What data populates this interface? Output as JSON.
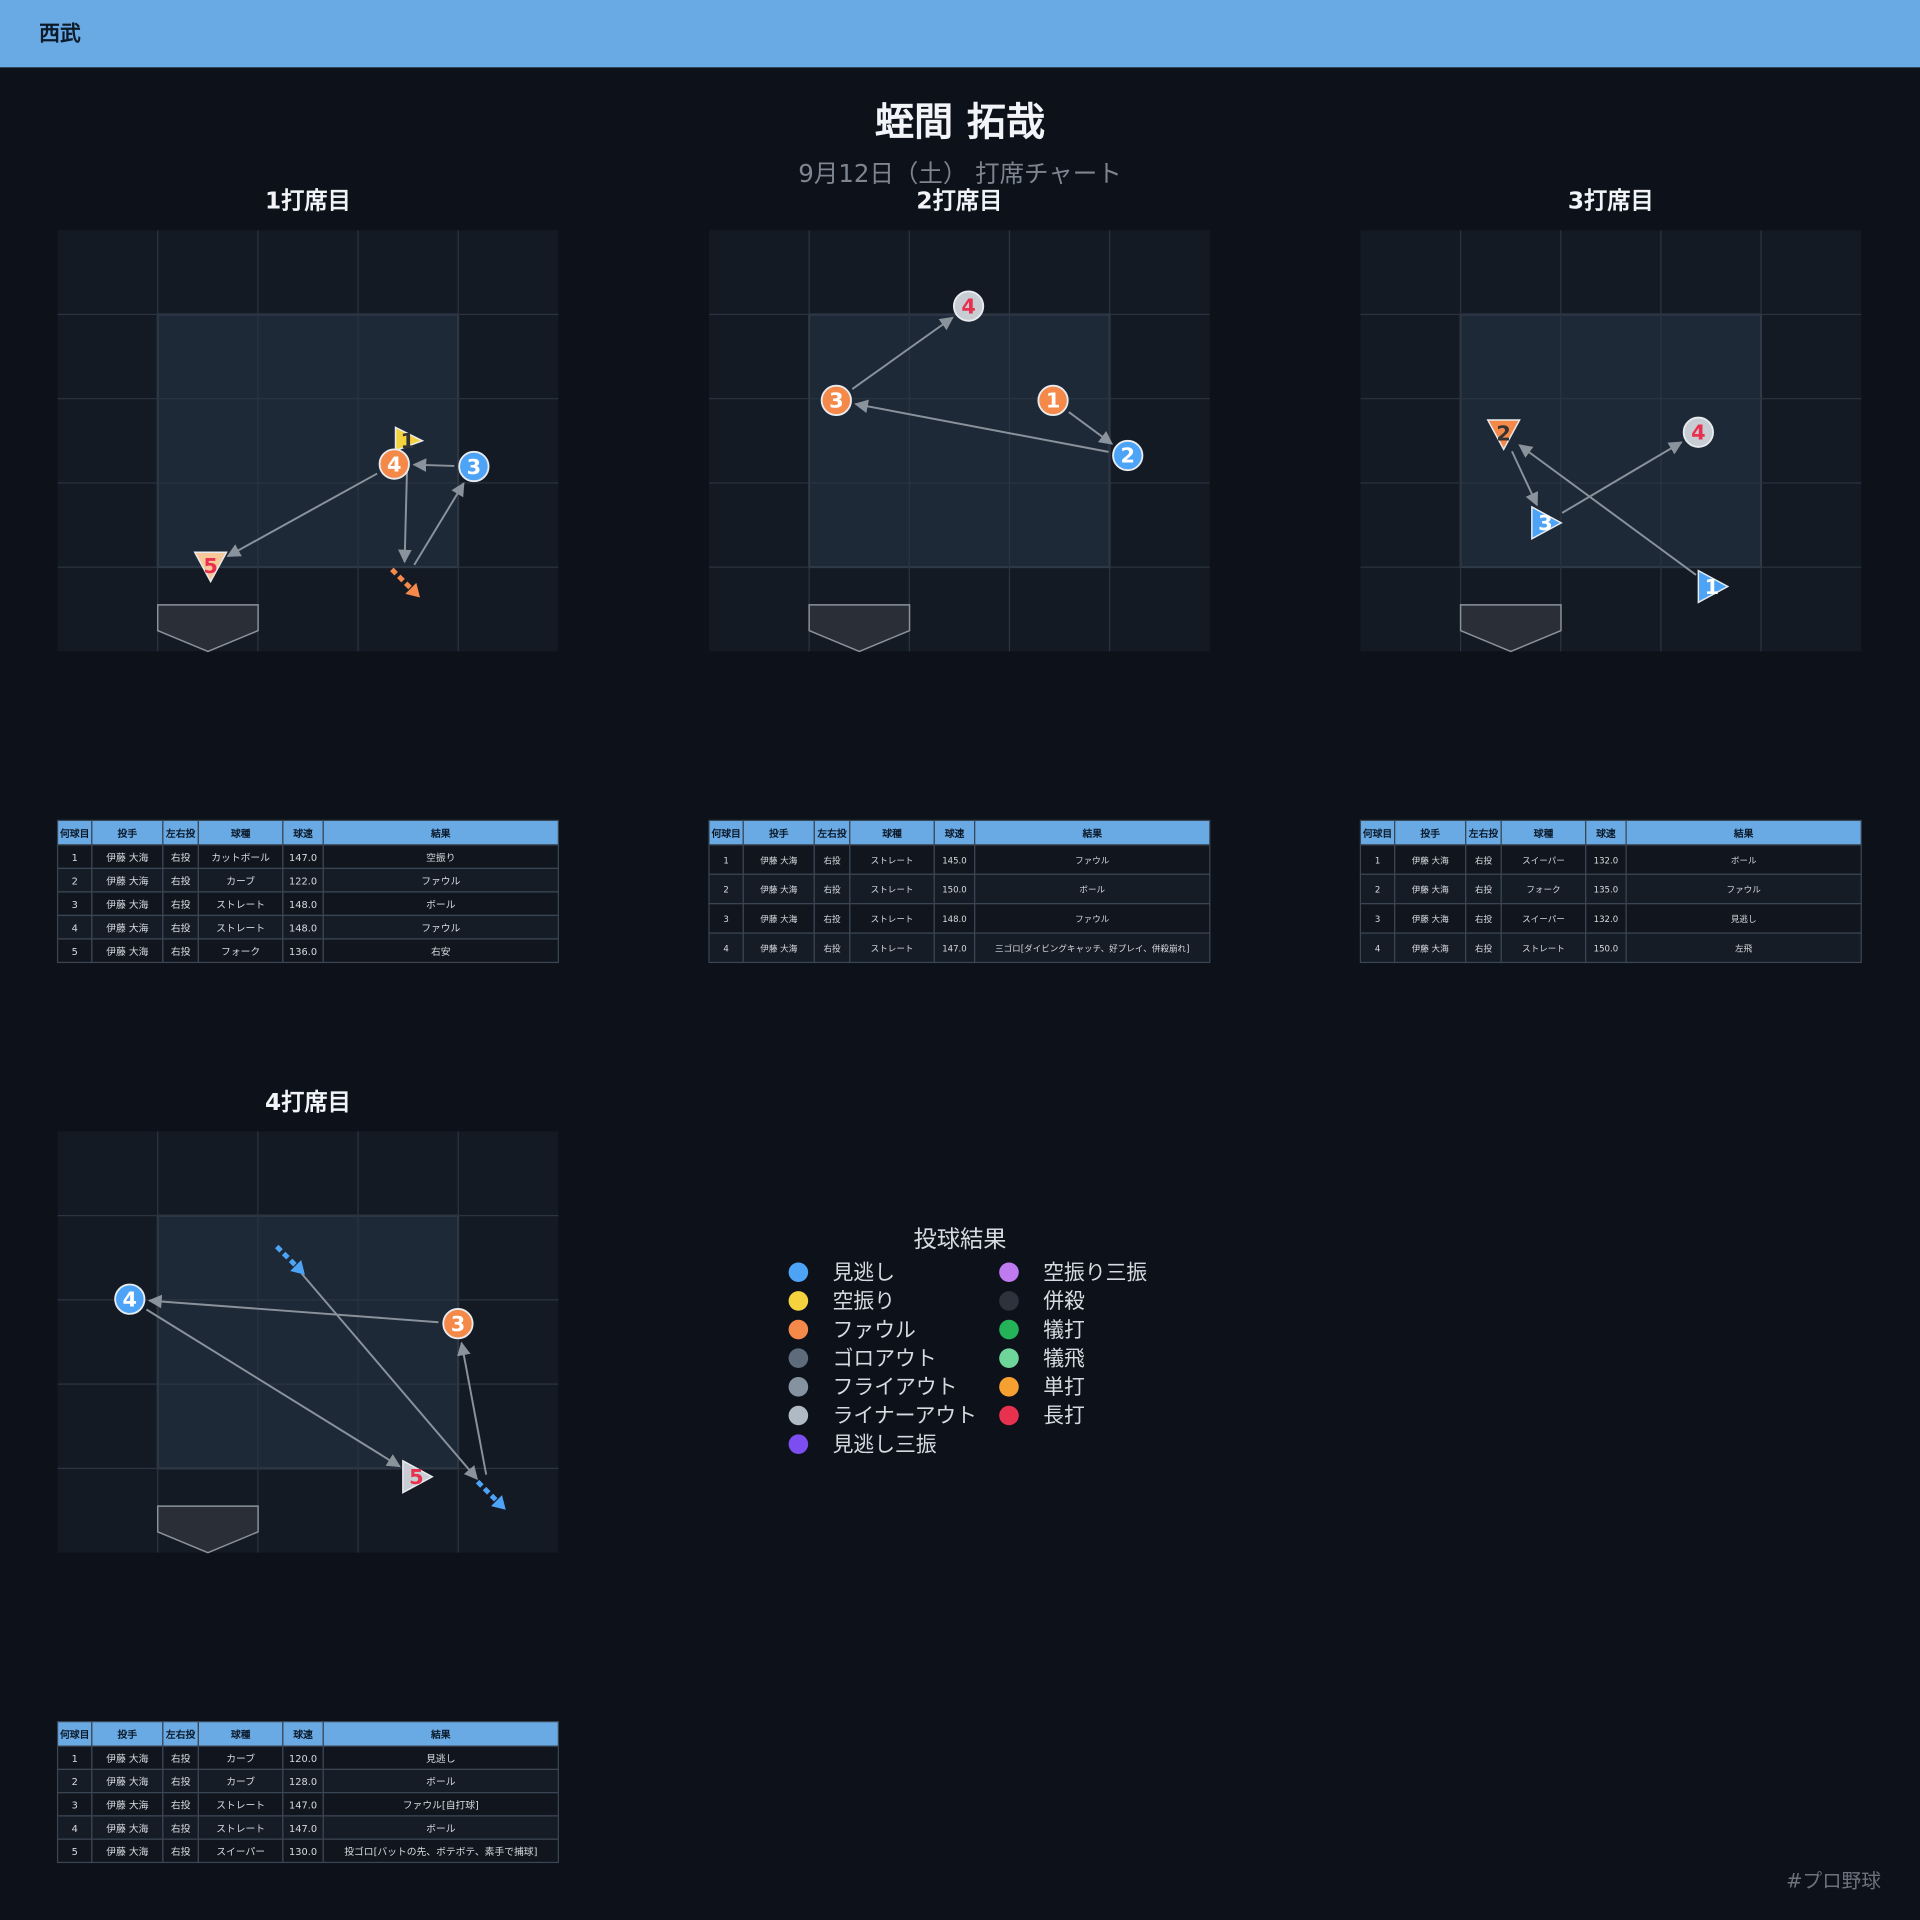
{
  "header": {
    "team": "西武"
  },
  "title": "蛭間 拓哉",
  "subtitle": "9月12日（土） 打席チャート",
  "columns": [
    "何球目",
    "投手",
    "左右投",
    "球種",
    "球速",
    "結果"
  ],
  "at_bats": [
    {
      "title": "1打席目",
      "rows": [
        [
          "1",
          "伊藤 大海",
          "右投",
          "カットボール",
          "147.0",
          "空振り"
        ],
        [
          "2",
          "伊藤 大海",
          "右投",
          "カーブ",
          "122.0",
          "ファウル"
        ],
        [
          "3",
          "伊藤 大海",
          "右投",
          "ストレート",
          "148.0",
          "ボール"
        ],
        [
          "4",
          "伊藤 大海",
          "右投",
          "ストレート",
          "148.0",
          "ファウル"
        ],
        [
          "5",
          "伊藤 大海",
          "右投",
          "フォーク",
          "136.0",
          "右安"
        ]
      ]
    },
    {
      "title": "2打席目",
      "rows": [
        [
          "1",
          "伊藤 大海",
          "右投",
          "ストレート",
          "145.0",
          "ファウル"
        ],
        [
          "2",
          "伊藤 大海",
          "右投",
          "ストレート",
          "150.0",
          "ボール"
        ],
        [
          "3",
          "伊藤 大海",
          "右投",
          "ストレート",
          "148.0",
          "ファウル"
        ],
        [
          "4",
          "伊藤 大海",
          "右投",
          "ストレート",
          "147.0",
          "三ゴロ[ダイビングキャッチ、好プレイ、併殺崩れ]"
        ]
      ]
    },
    {
      "title": "3打席目",
      "rows": [
        [
          "1",
          "伊藤 大海",
          "右投",
          "スイーパー",
          "132.0",
          "ボール"
        ],
        [
          "2",
          "伊藤 大海",
          "右投",
          "フォーク",
          "135.0",
          "ファウル"
        ],
        [
          "3",
          "伊藤 大海",
          "右投",
          "スイーパー",
          "132.0",
          "見逃し"
        ],
        [
          "4",
          "伊藤 大海",
          "右投",
          "ストレート",
          "150.0",
          "左飛"
        ]
      ]
    },
    {
      "title": "4打席目",
      "rows": [
        [
          "1",
          "伊藤 大海",
          "右投",
          "カーブ",
          "120.0",
          "見逃し"
        ],
        [
          "2",
          "伊藤 大海",
          "右投",
          "カーブ",
          "128.0",
          "ボール"
        ],
        [
          "3",
          "伊藤 大海",
          "右投",
          "ストレート",
          "147.0",
          "ファウル[自打球]"
        ],
        [
          "4",
          "伊藤 大海",
          "右投",
          "ストレート",
          "147.0",
          "ボール"
        ],
        [
          "5",
          "伊藤 大海",
          "右投",
          "スイーパー",
          "130.0",
          "投ゴロ[バットの先、ボテボテ、素手で捕球]"
        ]
      ]
    }
  ],
  "legend": {
    "title": "投球結果",
    "items": [
      {
        "label": "見逃し",
        "color": "#4da3f5"
      },
      {
        "label": "空振り",
        "color": "#f5d33f"
      },
      {
        "label": "ファウル",
        "color": "#f5894a"
      },
      {
        "label": "ゴロアウト",
        "color": "#5e6b7a"
      },
      {
        "label": "フライアウト",
        "color": "#8592a0"
      },
      {
        "label": "ライナーアウト",
        "color": "#b0bac4"
      },
      {
        "label": "見逃し三振",
        "color": "#7c4df0"
      },
      {
        "label": "空振り三振",
        "color": "#c07af0"
      },
      {
        "label": "併殺",
        "color": "#2d333d"
      },
      {
        "label": "犠打",
        "color": "#25b35a"
      },
      {
        "label": "犠飛",
        "color": "#6ed69a"
      },
      {
        "label": "単打",
        "color": "#f5a030"
      },
      {
        "label": "長打",
        "color": "#e8304f"
      }
    ]
  },
  "footer": "#プロ野球"
}
